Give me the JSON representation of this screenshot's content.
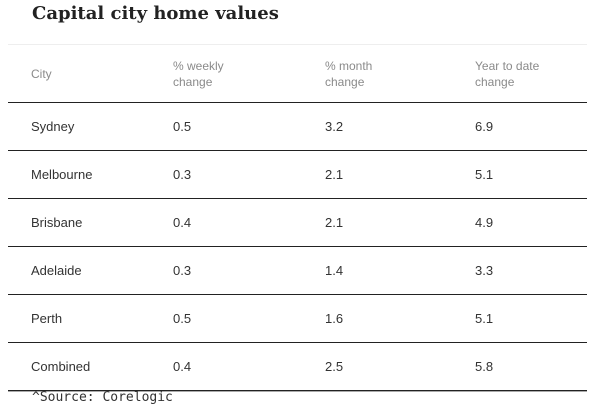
{
  "title": "Capital city home values",
  "source": "^Source: Corelogic",
  "chart_data": {
    "type": "table",
    "title": "Capital city home values",
    "columns": [
      {
        "lines": [
          "City"
        ]
      },
      {
        "lines": [
          "% weekly",
          "change"
        ]
      },
      {
        "lines": [
          "% month",
          "change"
        ]
      },
      {
        "lines": [
          "Year to date",
          "change"
        ]
      }
    ],
    "rows": [
      [
        "Sydney",
        "0.5",
        "3.2",
        "6.9"
      ],
      [
        "Melbourne",
        "0.3",
        "2.1",
        "5.1"
      ],
      [
        "Brisbane",
        "0.4",
        "2.1",
        "4.9"
      ],
      [
        "Adelaide",
        "0.3",
        "1.4",
        "3.3"
      ],
      [
        "Perth",
        "0.5",
        "1.6",
        "5.1"
      ],
      [
        "Combined",
        "0.4",
        "2.5",
        "5.8"
      ]
    ]
  }
}
